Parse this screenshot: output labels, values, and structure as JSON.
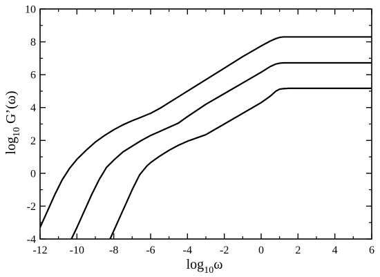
{
  "chart_data": {
    "type": "line",
    "xlabel": {
      "prefix": "log",
      "subscript": "10",
      "suffix": "ω"
    },
    "ylabel": {
      "prefix": "log",
      "subscript": "10",
      "suffix": " G’(ω)"
    },
    "xlim": [
      -12,
      6
    ],
    "ylim": [
      -4,
      10
    ],
    "xticks": [
      -12,
      -10,
      -8,
      -6,
      -4,
      -2,
      0,
      2,
      4,
      6
    ],
    "yticks": [
      -4,
      -2,
      0,
      2,
      4,
      6,
      8,
      10
    ],
    "xtick_labels": [
      "-12",
      "-10",
      "-8",
      "-6",
      "-4",
      "-2",
      "0",
      "2",
      "4",
      "6"
    ],
    "ytick_labels": [
      "-4",
      "-2",
      "0",
      "2",
      "4",
      "6",
      "8",
      "10"
    ],
    "grid": false,
    "legend": "none",
    "series": [
      {
        "color": "#000000",
        "x": [
          -12.0,
          -11.6,
          -11.2,
          -10.8,
          -10.4,
          -10.0,
          -9.5,
          -9.0,
          -8.5,
          -8.0,
          -7.5,
          -7.0,
          -6.5,
          -6.0,
          -5.5,
          -5.0,
          -4.5,
          -4.0,
          -3.0,
          -2.0,
          -1.0,
          0.0,
          0.5,
          0.8,
          1.0,
          1.2,
          1.5,
          2.0,
          3.0,
          4.0,
          5.0,
          6.0
        ],
        "y": [
          -3.3,
          -2.3,
          -1.3,
          -0.4,
          0.3,
          0.85,
          1.4,
          1.9,
          2.3,
          2.65,
          2.95,
          3.2,
          3.42,
          3.65,
          3.95,
          4.3,
          4.65,
          5.0,
          5.7,
          6.4,
          7.1,
          7.75,
          8.05,
          8.2,
          8.27,
          8.3,
          8.3,
          8.3,
          8.3,
          8.3,
          8.3,
          8.3
        ]
      },
      {
        "color": "#000000",
        "x": [
          -10.3,
          -10.0,
          -9.6,
          -9.2,
          -8.8,
          -8.4,
          -8.0,
          -7.5,
          -7.0,
          -6.5,
          -6.0,
          -5.5,
          -5.0,
          -4.5,
          -4.0,
          -3.0,
          -2.0,
          -1.0,
          0.0,
          0.5,
          0.8,
          1.0,
          1.2,
          1.5,
          2.0,
          3.0,
          4.0,
          5.0,
          6.0
        ],
        "y": [
          -4.0,
          -3.3,
          -2.3,
          -1.3,
          -0.4,
          0.35,
          0.8,
          1.3,
          1.65,
          2.0,
          2.3,
          2.55,
          2.8,
          3.05,
          3.45,
          4.2,
          4.85,
          5.5,
          6.15,
          6.5,
          6.65,
          6.7,
          6.72,
          6.72,
          6.72,
          6.72,
          6.72,
          6.72,
          6.72
        ]
      },
      {
        "color": "#000000",
        "x": [
          -8.2,
          -7.8,
          -7.4,
          -7.0,
          -6.6,
          -6.2,
          -6.0,
          -5.5,
          -5.0,
          -4.5,
          -4.0,
          -3.5,
          -3.0,
          -2.0,
          -1.0,
          0.0,
          0.5,
          0.8,
          1.0,
          1.2,
          1.5,
          2.0,
          3.0,
          4.0,
          5.0,
          6.0
        ],
        "y": [
          -4.0,
          -3.0,
          -2.0,
          -1.0,
          -0.1,
          0.45,
          0.65,
          1.05,
          1.4,
          1.7,
          1.95,
          2.15,
          2.35,
          3.0,
          3.65,
          4.3,
          4.7,
          5.0,
          5.12,
          5.15,
          5.17,
          5.17,
          5.17,
          5.17,
          5.17,
          5.17
        ]
      }
    ]
  }
}
